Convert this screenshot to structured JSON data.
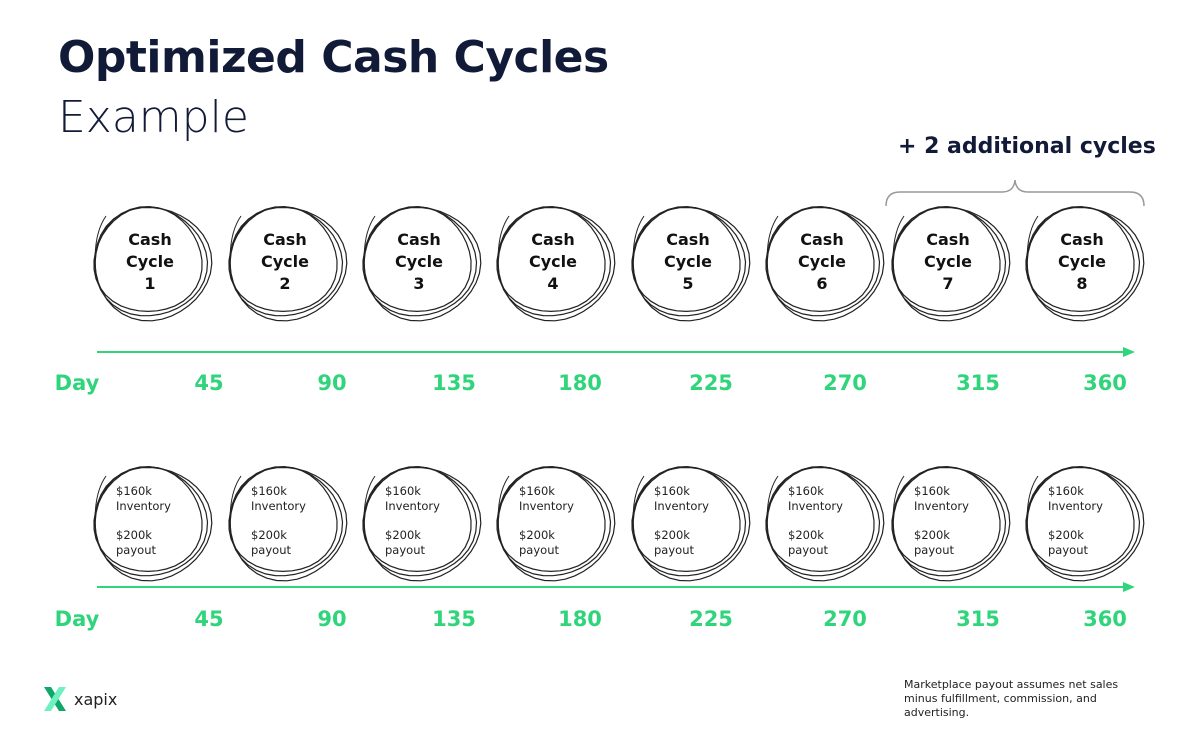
{
  "title": "Optimized Cash Cycles",
  "subtitle": "Example",
  "extra_cycles_label": "+ 2 additional cycles",
  "cycles": [
    {
      "line1": "Cash",
      "line2": "Cycle",
      "num": "1"
    },
    {
      "line1": "Cash",
      "line2": "Cycle",
      "num": "2"
    },
    {
      "line1": "Cash",
      "line2": "Cycle",
      "num": "3"
    },
    {
      "line1": "Cash",
      "line2": "Cycle",
      "num": "4"
    },
    {
      "line1": "Cash",
      "line2": "Cycle",
      "num": "5"
    },
    {
      "line1": "Cash",
      "line2": "Cycle",
      "num": "6"
    },
    {
      "line1": "Cash",
      "line2": "Cycle",
      "num": "7"
    },
    {
      "line1": "Cash",
      "line2": "Cycle",
      "num": "8"
    }
  ],
  "payout_cycle": {
    "inventory_amount": "$160k",
    "inventory_label": "Inventory",
    "payout_amount": "$200k",
    "payout_label": "payout"
  },
  "day_label": "Day",
  "days": [
    "45",
    "90",
    "135",
    "180",
    "225",
    "270",
    "315",
    "360"
  ],
  "footnote": "Marketplace payout assumes net sales minus fulfillment, commission, and advertising.",
  "logo_text": "xapix",
  "colors": {
    "accent": "#2fd47b",
    "title": "#111a36"
  }
}
